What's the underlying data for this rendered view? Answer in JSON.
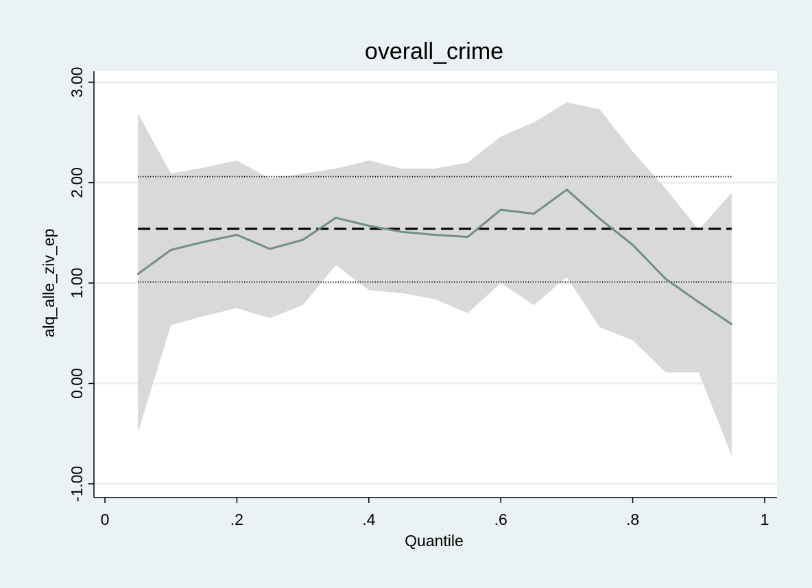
{
  "chart_data": {
    "type": "line",
    "title": "overall_crime",
    "xlabel": "Quantile",
    "ylabel": "alq_alle_ziv_ep",
    "xlim": [
      0,
      1
    ],
    "ylim": [
      -1.0,
      3.0
    ],
    "x_ticks": [
      0,
      0.2,
      0.4,
      0.6,
      0.8,
      1
    ],
    "x_tick_labels": [
      "0",
      ".2",
      ".4",
      ".6",
      ".8",
      "1"
    ],
    "y_ticks": [
      -1,
      0,
      1,
      2,
      3
    ],
    "y_tick_labels": [
      "-1.00",
      "0.00",
      "1.00",
      "2.00",
      "3.00"
    ],
    "grid": "horizontal",
    "x": [
      0.05,
      0.1,
      0.15,
      0.2,
      0.25,
      0.3,
      0.35,
      0.4,
      0.45,
      0.5,
      0.55,
      0.6,
      0.65,
      0.7,
      0.75,
      0.8,
      0.85,
      0.9,
      0.95
    ],
    "series": [
      {
        "values": [
          1.09,
          1.33,
          1.41,
          1.48,
          1.34,
          1.43,
          1.65,
          1.57,
          1.51,
          1.48,
          1.46,
          1.73,
          1.69,
          1.93,
          1.64,
          1.38,
          1.04,
          0.81,
          0.59
        ]
      }
    ],
    "ci_band": {
      "upper": [
        2.69,
        2.09,
        2.15,
        2.22,
        2.04,
        2.09,
        2.14,
        2.22,
        2.14,
        2.14,
        2.2,
        2.46,
        2.6,
        2.8,
        2.73,
        2.31,
        1.94,
        1.53,
        1.9
      ],
      "lower": [
        -0.49,
        0.58,
        0.67,
        0.75,
        0.65,
        0.78,
        1.18,
        0.93,
        0.9,
        0.84,
        0.7,
        1.0,
        0.78,
        1.06,
        0.56,
        0.43,
        0.11,
        0.11,
        -0.72
      ]
    },
    "ols_estimate": 1.54,
    "ols_ci": [
      1.01,
      2.06
    ],
    "colors": {
      "outer_background": "#eaf2f3",
      "plot_background": "#ffffff",
      "grid": "#e6eef0",
      "band": "#d9d9d9",
      "line": "#708f82",
      "ols_line": "#000000"
    }
  }
}
